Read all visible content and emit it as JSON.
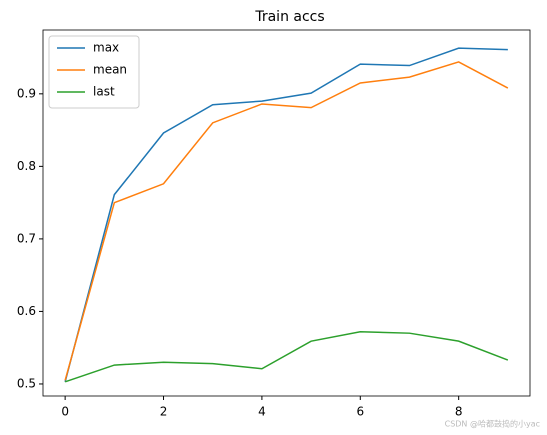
{
  "chart_data": {
    "type": "line",
    "title": "Train accs",
    "x": [
      0,
      1,
      2,
      3,
      4,
      5,
      6,
      7,
      8,
      9
    ],
    "series": [
      {
        "name": "max",
        "color": "#1f77b4",
        "values": [
          0.503,
          0.761,
          0.846,
          0.885,
          0.89,
          0.901,
          0.941,
          0.939,
          0.963,
          0.961
        ]
      },
      {
        "name": "mean",
        "color": "#ff7f0e",
        "values": [
          0.505,
          0.75,
          0.776,
          0.86,
          0.886,
          0.881,
          0.915,
          0.923,
          0.944,
          0.908
        ]
      },
      {
        "name": "last",
        "color": "#2ca02c",
        "values": [
          0.503,
          0.526,
          0.53,
          0.528,
          0.521,
          0.559,
          0.572,
          0.57,
          0.559,
          0.533
        ]
      }
    ],
    "xlim": [
      -0.45,
      9.45
    ],
    "xticks": [
      0,
      2,
      4,
      6,
      8
    ],
    "ylim": [
      0.4834,
      0.988
    ],
    "yticks": [
      0.5,
      0.6,
      0.7,
      0.8,
      0.9
    ],
    "legend": "upper left",
    "grid": false
  },
  "watermark": "CSDN @哈都鼓捣的小yac"
}
